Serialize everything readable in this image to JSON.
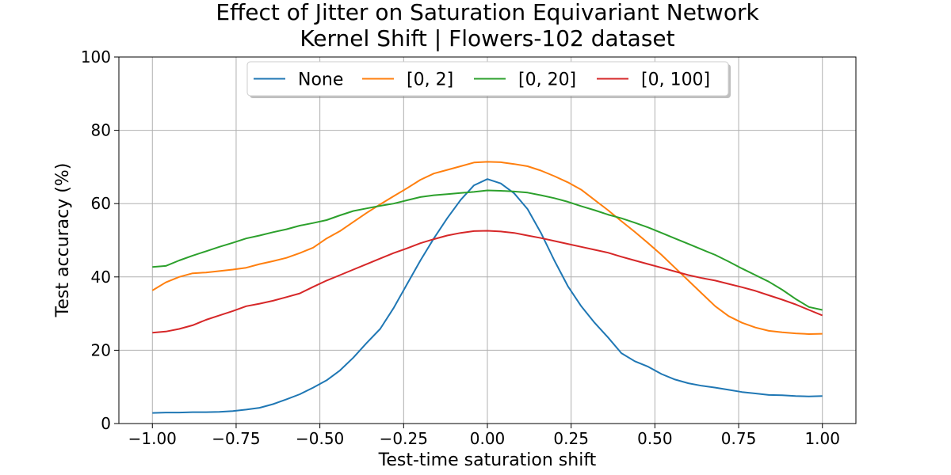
{
  "chart_data": {
    "type": "line",
    "title": "Effect of Jitter on Saturation Equivariant Network",
    "subtitle": "Kernel Shift | Flowers-102 dataset",
    "xlabel": "Test-time saturation shift",
    "ylabel": "Test accuracy (%)",
    "xlim": [
      -1.1,
      1.1
    ],
    "ylim": [
      0,
      100
    ],
    "xticks": [
      -1.0,
      -0.75,
      -0.5,
      -0.25,
      0.0,
      0.25,
      0.5,
      0.75,
      1.0
    ],
    "xtick_labels": [
      "−1.00",
      "−0.75",
      "−0.50",
      "−0.25",
      "0.00",
      "0.25",
      "0.50",
      "0.75",
      "1.00"
    ],
    "yticks": [
      0,
      20,
      40,
      60,
      80,
      100
    ],
    "ytick_labels": [
      "0",
      "20",
      "40",
      "60",
      "80",
      "100"
    ],
    "grid": true,
    "legend_position": "top-center",
    "x": [
      -1.0,
      -0.96,
      -0.92,
      -0.88,
      -0.84,
      -0.8,
      -0.76,
      -0.72,
      -0.68,
      -0.64,
      -0.6,
      -0.56,
      -0.52,
      -0.48,
      -0.44,
      -0.4,
      -0.36,
      -0.32,
      -0.28,
      -0.24,
      -0.2,
      -0.16,
      -0.12,
      -0.08,
      -0.04,
      0.0,
      0.04,
      0.08,
      0.12,
      0.16,
      0.2,
      0.24,
      0.28,
      0.32,
      0.36,
      0.4,
      0.44,
      0.48,
      0.52,
      0.56,
      0.6,
      0.64,
      0.68,
      0.72,
      0.76,
      0.8,
      0.84,
      0.88,
      0.92,
      0.96,
      1.0
    ],
    "series": [
      {
        "name": "None",
        "color": "#1f77b4",
        "values": [
          2.9,
          3.0,
          3.0,
          3.1,
          3.1,
          3.2,
          3.4,
          3.8,
          4.3,
          5.3,
          6.6,
          8.0,
          9.8,
          11.8,
          14.5,
          18.0,
          22.0,
          25.8,
          31.5,
          38.0,
          44.5,
          50.5,
          56.0,
          61.0,
          65.0,
          66.7,
          65.5,
          62.8,
          58.5,
          52.0,
          44.5,
          37.5,
          32.0,
          27.5,
          23.5,
          19.2,
          17.0,
          15.5,
          13.5,
          12.0,
          11.0,
          10.3,
          9.8,
          9.2,
          8.6,
          8.2,
          7.8,
          7.7,
          7.5,
          7.4,
          7.5
        ]
      },
      {
        "name": "[0, 2]",
        "color": "#ff7f0e",
        "values": [
          36.3,
          38.5,
          40.0,
          41.0,
          41.2,
          41.6,
          42.0,
          42.5,
          43.5,
          44.3,
          45.2,
          46.5,
          48.0,
          50.5,
          52.5,
          55.0,
          57.5,
          59.8,
          62.0,
          64.2,
          66.5,
          68.2,
          69.2,
          70.2,
          71.2,
          71.4,
          71.3,
          70.8,
          70.2,
          69.0,
          67.5,
          65.8,
          63.8,
          61.0,
          58.2,
          55.2,
          52.3,
          49.2,
          46.0,
          42.5,
          39.0,
          35.5,
          32.0,
          29.3,
          27.5,
          26.2,
          25.3,
          24.9,
          24.6,
          24.4,
          24.5
        ]
      },
      {
        "name": "[0, 20]",
        "color": "#2ca02c",
        "values": [
          42.7,
          43.0,
          44.5,
          45.8,
          47.0,
          48.2,
          49.3,
          50.5,
          51.3,
          52.2,
          53.0,
          54.0,
          54.7,
          55.5,
          56.8,
          58.0,
          58.7,
          59.4,
          60.0,
          60.9,
          61.8,
          62.3,
          62.6,
          62.9,
          63.2,
          63.6,
          63.5,
          63.3,
          63.0,
          62.3,
          61.5,
          60.5,
          59.3,
          58.2,
          57.0,
          56.0,
          54.8,
          53.5,
          52.0,
          50.5,
          49.0,
          47.5,
          46.0,
          44.2,
          42.3,
          40.5,
          38.7,
          36.5,
          34.0,
          31.8,
          31.0
        ]
      },
      {
        "name": "[0, 100]",
        "color": "#d62728",
        "values": [
          24.8,
          25.1,
          25.8,
          26.8,
          28.3,
          29.5,
          30.7,
          32.0,
          32.7,
          33.5,
          34.5,
          35.5,
          37.3,
          39.0,
          40.5,
          42.0,
          43.5,
          45.0,
          46.5,
          47.8,
          49.2,
          50.3,
          51.3,
          52.0,
          52.5,
          52.6,
          52.4,
          52.0,
          51.3,
          50.6,
          49.8,
          49.0,
          48.2,
          47.4,
          46.6,
          45.5,
          44.5,
          43.5,
          42.5,
          41.5,
          40.5,
          39.7,
          39.0,
          38.1,
          37.2,
          36.2,
          35.0,
          33.8,
          32.5,
          31.0,
          29.5
        ]
      }
    ]
  }
}
